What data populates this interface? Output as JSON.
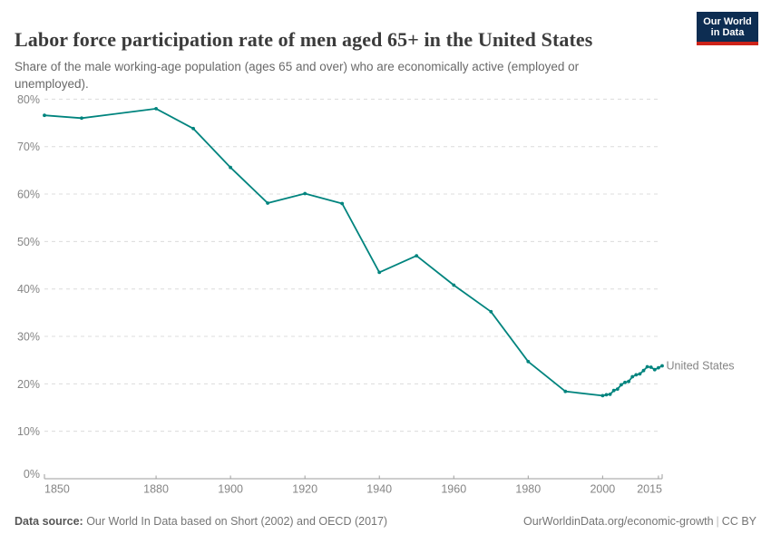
{
  "header": {
    "title": "Labor force participation rate of men aged 65+ in the United States",
    "subtitle": "Share of the male working-age population (ages 65 and over) who are economically active (employed or unemployed).",
    "logo": {
      "line1": "Our World",
      "line2": "in Data"
    }
  },
  "chart_data": {
    "type": "line",
    "title": "Labor force participation rate of men aged 65+ in the United States",
    "xlabel": "",
    "ylabel": "",
    "xlim": [
      1850,
      2016
    ],
    "ylim": [
      0,
      80
    ],
    "x_ticks": [
      1850,
      1880,
      1900,
      1920,
      1940,
      1960,
      1980,
      2000,
      2015
    ],
    "y_ticks": [
      0,
      10,
      20,
      30,
      40,
      50,
      60,
      70,
      80
    ],
    "y_tick_suffix": "%",
    "grid": "horizontal-dashed",
    "legend_position": "end-of-line-label",
    "series": [
      {
        "name": "United States",
        "points": [
          [
            1850,
            76.6
          ],
          [
            1860,
            76.0
          ],
          [
            1880,
            78.0
          ],
          [
            1890,
            73.8
          ],
          [
            1900,
            65.6
          ],
          [
            1910,
            58.1
          ],
          [
            1920,
            60.1
          ],
          [
            1930,
            58.0
          ],
          [
            1940,
            43.5
          ],
          [
            1950,
            47.0
          ],
          [
            1960,
            40.8
          ],
          [
            1970,
            35.2
          ],
          [
            1980,
            24.7
          ],
          [
            1990,
            18.4
          ],
          [
            2000,
            17.5
          ],
          [
            2001,
            17.7
          ],
          [
            2002,
            17.8
          ],
          [
            2003,
            18.6
          ],
          [
            2004,
            18.9
          ],
          [
            2005,
            19.8
          ],
          [
            2006,
            20.3
          ],
          [
            2007,
            20.5
          ],
          [
            2008,
            21.5
          ],
          [
            2009,
            21.9
          ],
          [
            2010,
            22.1
          ],
          [
            2011,
            22.8
          ],
          [
            2012,
            23.6
          ],
          [
            2013,
            23.5
          ],
          [
            2014,
            23.0
          ],
          [
            2015,
            23.4
          ],
          [
            2016,
            23.8
          ]
        ]
      }
    ]
  },
  "footer": {
    "datasource_label": "Data source:",
    "datasource_text": " Our World In Data based on Short (2002) and OECD (2017)",
    "link": "OurWorldinData.org/economic-growth",
    "separator": "|",
    "license": "CC BY"
  },
  "colors": {
    "series": "#00847e",
    "grid": "#dcdcdc",
    "axis": "#9e9e9e",
    "tick_label": "#858585",
    "title": "#3b3b3b",
    "subtitle": "#696969",
    "logo_bg": "#0d2d52",
    "logo_accent": "#cd2319"
  }
}
